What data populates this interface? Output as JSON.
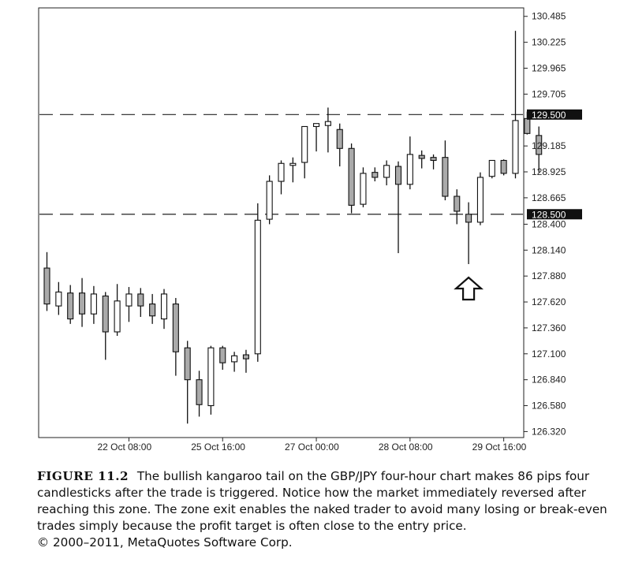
{
  "chart_data": {
    "type": "candlestick",
    "title": "",
    "xlabel": "",
    "ylabel": "",
    "ylim": [
      126.26,
      130.57
    ],
    "y_ticks": [
      "130.485",
      "130.225",
      "129.965",
      "129.705",
      "129.185",
      "128.925",
      "128.665",
      "128.400",
      "128.140",
      "127.880",
      "127.620",
      "127.360",
      "127.100",
      "126.840",
      "126.580",
      "126.320"
    ],
    "x_ticks": [
      "22 Oct 08:00",
      "25 Oct 16:00",
      "27 Oct 00:00",
      "28 Oct 08:00",
      "29 Oct 16:00"
    ],
    "x_tick_positions": [
      7,
      15,
      23,
      31,
      39
    ],
    "price_levels": [
      {
        "label": "129.500",
        "value": 129.5
      },
      {
        "label": "128.500",
        "value": 128.5
      }
    ],
    "candles": [
      {
        "o": 127.96,
        "h": 128.12,
        "l": 127.53,
        "c": 127.6
      },
      {
        "o": 127.58,
        "h": 127.82,
        "l": 127.49,
        "c": 127.72
      },
      {
        "o": 127.71,
        "h": 127.79,
        "l": 127.4,
        "c": 127.45
      },
      {
        "o": 127.71,
        "h": 127.86,
        "l": 127.37,
        "c": 127.5
      },
      {
        "o": 127.5,
        "h": 127.78,
        "l": 127.4,
        "c": 127.7
      },
      {
        "o": 127.68,
        "h": 127.72,
        "l": 127.04,
        "c": 127.32
      },
      {
        "o": 127.32,
        "h": 127.8,
        "l": 127.28,
        "c": 127.63
      },
      {
        "o": 127.58,
        "h": 127.77,
        "l": 127.42,
        "c": 127.7
      },
      {
        "o": 127.7,
        "h": 127.76,
        "l": 127.47,
        "c": 127.58
      },
      {
        "o": 127.6,
        "h": 127.7,
        "l": 127.4,
        "c": 127.48
      },
      {
        "o": 127.45,
        "h": 127.75,
        "l": 127.35,
        "c": 127.7
      },
      {
        "o": 127.6,
        "h": 127.66,
        "l": 126.88,
        "c": 127.12
      },
      {
        "o": 127.16,
        "h": 127.23,
        "l": 126.4,
        "c": 126.84
      },
      {
        "o": 126.84,
        "h": 126.93,
        "l": 126.47,
        "c": 126.59
      },
      {
        "o": 126.58,
        "h": 127.18,
        "l": 126.49,
        "c": 127.16
      },
      {
        "o": 127.16,
        "h": 127.18,
        "l": 126.94,
        "c": 127.01
      },
      {
        "o": 127.02,
        "h": 127.12,
        "l": 126.92,
        "c": 127.08
      },
      {
        "o": 127.09,
        "h": 127.14,
        "l": 126.91,
        "c": 127.05
      },
      {
        "o": 127.1,
        "h": 128.61,
        "l": 127.02,
        "c": 128.44
      },
      {
        "o": 128.45,
        "h": 128.89,
        "l": 128.4,
        "c": 128.83
      },
      {
        "o": 128.83,
        "h": 129.04,
        "l": 128.7,
        "c": 129.01
      },
      {
        "o": 128.99,
        "h": 129.07,
        "l": 128.82,
        "c": 129.01
      },
      {
        "o": 129.02,
        "h": 129.38,
        "l": 128.86,
        "c": 129.38
      },
      {
        "o": 129.38,
        "h": 129.41,
        "l": 129.13,
        "c": 129.41
      },
      {
        "o": 129.39,
        "h": 129.57,
        "l": 129.12,
        "c": 129.43
      },
      {
        "o": 129.35,
        "h": 129.41,
        "l": 128.98,
        "c": 129.16
      },
      {
        "o": 129.16,
        "h": 129.21,
        "l": 128.51,
        "c": 128.59
      },
      {
        "o": 128.6,
        "h": 128.97,
        "l": 128.57,
        "c": 128.91
      },
      {
        "o": 128.92,
        "h": 128.97,
        "l": 128.83,
        "c": 128.87
      },
      {
        "o": 128.87,
        "h": 129.04,
        "l": 128.79,
        "c": 128.99
      },
      {
        "o": 128.98,
        "h": 129.03,
        "l": 128.11,
        "c": 128.8
      },
      {
        "o": 128.8,
        "h": 129.28,
        "l": 128.75,
        "c": 129.1
      },
      {
        "o": 129.09,
        "h": 129.14,
        "l": 128.96,
        "c": 129.06
      },
      {
        "o": 129.07,
        "h": 129.1,
        "l": 128.95,
        "c": 129.04
      },
      {
        "o": 129.07,
        "h": 129.24,
        "l": 128.64,
        "c": 128.68
      },
      {
        "o": 128.68,
        "h": 128.75,
        "l": 128.4,
        "c": 128.53
      },
      {
        "o": 128.5,
        "h": 128.62,
        "l": 128.0,
        "c": 128.42
      },
      {
        "o": 128.42,
        "h": 128.92,
        "l": 128.39,
        "c": 128.87
      },
      {
        "o": 128.88,
        "h": 129.04,
        "l": 128.86,
        "c": 129.04
      },
      {
        "o": 129.04,
        "h": 129.05,
        "l": 128.89,
        "c": 128.91
      },
      {
        "o": 128.91,
        "h": 130.34,
        "l": 128.86,
        "c": 129.44
      },
      {
        "o": 129.46,
        "h": 129.53,
        "l": 129.3,
        "c": 129.31
      },
      {
        "o": 129.29,
        "h": 129.38,
        "l": 128.92,
        "c": 129.1
      }
    ]
  },
  "caption": {
    "figure_label": "FIGURE 11.2",
    "text": "The bullish kangaroo tail on the GBP/JPY four-hour chart makes 86 pips four candlesticks after the trade is triggered. Notice how the market immediately reversed after reaching this zone. The zone exit enables the naked trader to avoid many losing or break-even trades simply because the profit target is often close to the entry price.",
    "copyright": "© 2000–2011, MetaQuotes Software Corp."
  },
  "annotation": {
    "icon": "up-arrow-icon",
    "candle_index": 36
  },
  "colors": {
    "bearish_fill": "#aaaaaa",
    "bullish_fill": "#ffffff",
    "line": "#111111",
    "badge_bg": "#111111"
  }
}
